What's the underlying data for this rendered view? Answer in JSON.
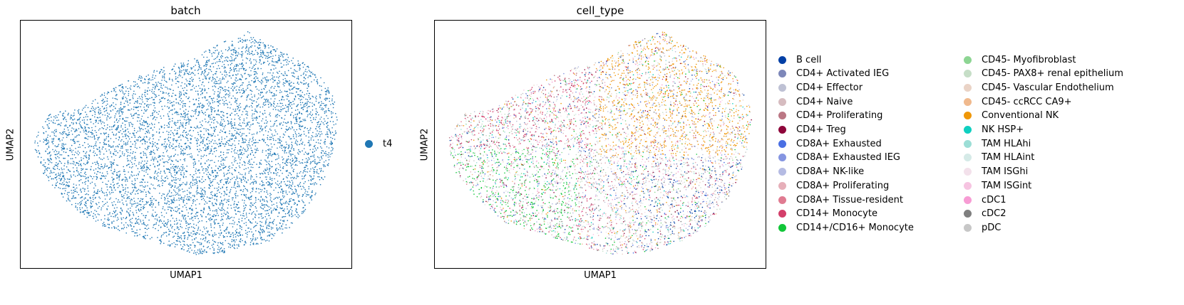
{
  "chart_data": [
    {
      "type": "scatter",
      "title": "batch",
      "xlabel": "UMAP1",
      "ylabel": "UMAP2",
      "grid": false,
      "legend_placement": "right",
      "categories": [
        "t4"
      ],
      "colors": {
        "t4": "#1f77b4"
      },
      "points_by_category": {
        "t4": 20000
      }
    },
    {
      "type": "scatter",
      "title": "cell_type",
      "xlabel": "UMAP1",
      "ylabel": "UMAP2",
      "grid": false,
      "legend_placement": "right",
      "legend_columns": 2,
      "categories": [
        "B cell",
        "CD4+ Activated IEG",
        "CD4+ Effector",
        "CD4+ Naive",
        "CD4+ Proliferating",
        "CD4+ Treg",
        "CD8A+ Exhausted",
        "CD8A+ Exhausted IEG",
        "CD8A+ NK-like",
        "CD8A+ Proliferating",
        "CD8A+ Tissue-resident",
        "CD14+ Monocyte",
        "CD14+/CD16+ Monocyte",
        "CD45- Myofibroblast",
        "CD45- PAX8+ renal epithelium",
        "CD45- Vascular Endothelium",
        "CD45- ccRCC CA9+",
        "Conventional NK",
        "NK HSP+",
        "TAM HLAhi",
        "TAM HLAint",
        "TAM ISGhi",
        "TAM ISGint",
        "cDC1",
        "cDC2",
        "pDC"
      ],
      "colors": {
        "B cell": "#023fa5",
        "CD4+ Activated IEG": "#7d87b9",
        "CD4+ Effector": "#bec1d4",
        "CD4+ Naive": "#d6bcc0",
        "CD4+ Proliferating": "#bb7784",
        "CD4+ Treg": "#8e063b",
        "CD8A+ Exhausted": "#4a6fe3",
        "CD8A+ Exhausted IEG": "#8595e1",
        "CD8A+ NK-like": "#b5bbe3",
        "CD8A+ Proliferating": "#e6afb9",
        "CD8A+ Tissue-resident": "#e07b91",
        "CD14+ Monocyte": "#d33f6a",
        "CD14+/CD16+ Monocyte": "#11c638",
        "CD45- Myofibroblast": "#8dd593",
        "CD45- PAX8+ renal epithelium": "#c6dec7",
        "CD45- Vascular Endothelium": "#ead3c6",
        "CD45- ccRCC CA9+": "#f0b98d",
        "Conventional NK": "#ef9708",
        "NK HSP+": "#0fcfc0",
        "TAM HLAhi": "#9cded6",
        "TAM HLAint": "#d5eae7",
        "TAM ISGhi": "#f3e1eb",
        "TAM ISGint": "#f6c4e1",
        "cDC1": "#f79cd4",
        "cDC2": "#7f7f7f",
        "pDC": "#c7c7c7"
      }
    }
  ]
}
